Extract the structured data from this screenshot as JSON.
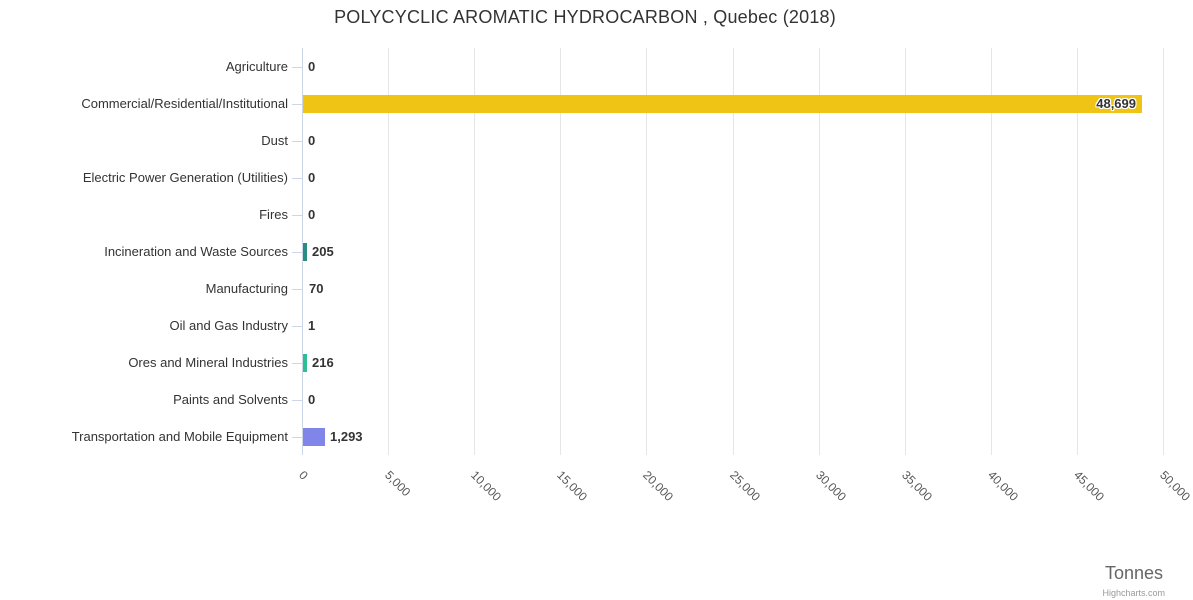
{
  "title": "POLYCYCLIC AROMATIC HYDROCARBON , Quebec (2018)",
  "unit_label": "Tonnes",
  "credits": "Highcharts.com",
  "chart_data": {
    "type": "bar",
    "orientation": "horizontal",
    "title": "POLYCYCLIC AROMATIC HYDROCARBON , Quebec (2018)",
    "categories": [
      "Agriculture",
      "Commercial/Residential/Institutional",
      "Dust",
      "Electric Power Generation (Utilities)",
      "Fires",
      "Incineration and Waste Sources",
      "Manufacturing",
      "Oil and Gas Industry",
      "Ores and Mineral Industries",
      "Paints and Solvents",
      "Transportation and Mobile Equipment"
    ],
    "values": [
      0,
      48699,
      0,
      0,
      0,
      205,
      70,
      1,
      216,
      0,
      1293
    ],
    "value_labels": [
      "0",
      "48,699",
      "0",
      "0",
      "0",
      "205",
      "70",
      "1",
      "216",
      "0",
      "1,293"
    ],
    "bar_colors": [
      null,
      "#f0c414",
      null,
      null,
      null,
      "#2a8c82",
      null,
      null,
      "#2ebd96",
      null,
      "#8085e9"
    ],
    "xlabel": "Tonnes",
    "ylabel": "",
    "xlim": [
      0,
      50000
    ],
    "tick_interval": 5000,
    "x_tick_labels": [
      "0",
      "5,000",
      "10,000",
      "15,000",
      "20,000",
      "25,000",
      "30,000",
      "35,000",
      "40,000",
      "45,000",
      "50,000"
    ],
    "grid": true,
    "legend": false
  },
  "colors": {
    "grid": "#e6e6e6",
    "axis_line": "#ccd6eb",
    "title_text": "#333333",
    "label_text": "#333333",
    "tick_text": "#555555",
    "unit_text": "#666666",
    "credits_text": "#999999"
  }
}
